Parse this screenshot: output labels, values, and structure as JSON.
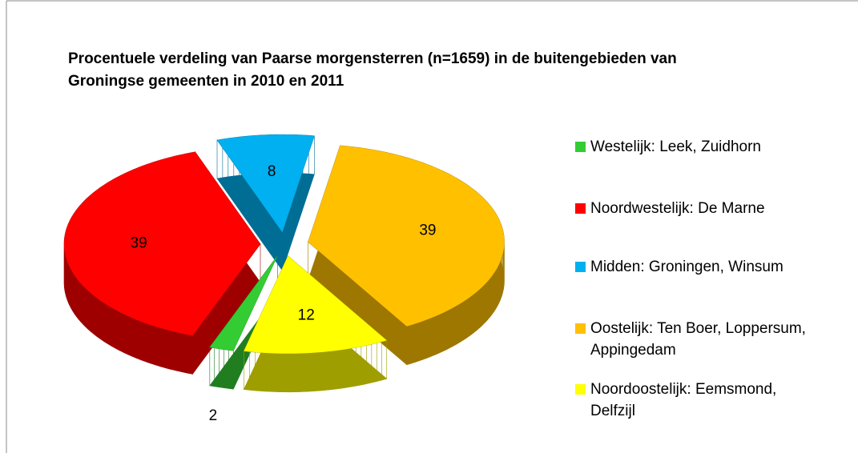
{
  "chart_data": {
    "type": "pie",
    "title": "Procentuele verdeling van Paarse morgensterren (n=1659) in de buitengebieden van Groningse gemeenten in 2010 en 2011",
    "categories": [
      "Westelijk: Leek, Zuidhorn",
      "Noordwestelijk: De Marne",
      "Midden: Groningen, Winsum",
      "Oostelijk: Ten Boer, Loppersum, Appingedam",
      "Noordoostelijk: Eemsmond, Delfzijl"
    ],
    "values": [
      2,
      39,
      8,
      39,
      12
    ],
    "colors": [
      "#33cc33",
      "#ff0000",
      "#00b0f0",
      "#ffc000",
      "#ffff00"
    ],
    "legend": "right"
  }
}
